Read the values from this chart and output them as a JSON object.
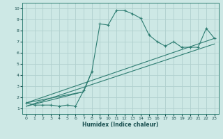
{
  "xlabel": "Humidex (Indice chaleur)",
  "background_color": "#cde8e5",
  "grid_color": "#b0d0ce",
  "line_color": "#2e7d72",
  "xlim": [
    -0.5,
    23.5
  ],
  "ylim": [
    0.5,
    10.5
  ],
  "xticks": [
    0,
    1,
    2,
    3,
    4,
    5,
    6,
    7,
    8,
    9,
    10,
    11,
    12,
    13,
    14,
    15,
    16,
    17,
    18,
    19,
    20,
    21,
    22,
    23
  ],
  "yticks": [
    1,
    2,
    3,
    4,
    5,
    6,
    7,
    8,
    9,
    10
  ],
  "main_line_x": [
    0,
    1,
    2,
    3,
    4,
    5,
    6,
    7,
    8,
    9,
    10,
    11,
    12,
    13,
    14,
    15,
    16,
    17,
    18,
    19,
    20,
    21,
    22,
    23
  ],
  "main_line_y": [
    1.5,
    1.3,
    1.3,
    1.3,
    1.2,
    1.3,
    1.2,
    2.6,
    4.3,
    8.6,
    8.5,
    9.8,
    9.8,
    9.5,
    9.1,
    7.6,
    7.0,
    6.6,
    7.0,
    6.5,
    6.5,
    6.5,
    8.2,
    7.3
  ],
  "trend_line1_x": [
    0,
    23
  ],
  "trend_line1_y": [
    1.5,
    7.3
  ],
  "trend_line2_x": [
    0,
    23
  ],
  "trend_line2_y": [
    1.2,
    6.8
  ],
  "trend_line3_x": [
    0,
    7,
    8
  ],
  "trend_line3_y": [
    1.5,
    2.5,
    4.3
  ],
  "trend_line4_x": [
    0,
    7
  ],
  "trend_line4_y": [
    1.2,
    2.5
  ]
}
